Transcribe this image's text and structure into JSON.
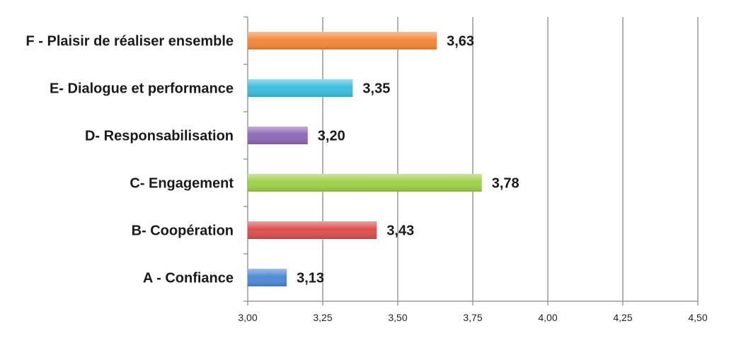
{
  "chart_data": {
    "type": "bar",
    "orientation": "horizontal",
    "categories": [
      "F - Plaisir de réaliser ensemble",
      "E- Dialogue et performance",
      "D- Responsabilisation",
      "C- Engagement",
      "B- Coopération",
      "A - Confiance"
    ],
    "values": [
      3.63,
      3.35,
      3.2,
      3.78,
      3.43,
      3.13
    ],
    "value_labels": [
      "3,63",
      "3,35",
      "3,20",
      "3,78",
      "3,43",
      "3,13"
    ],
    "colors": [
      "#f58a3c",
      "#3ec0e0",
      "#8e6bb8",
      "#9ed14a",
      "#de5050",
      "#4f8ad6"
    ],
    "xlim": [
      3.0,
      4.5
    ],
    "xticks": [
      3.0,
      3.25,
      3.5,
      3.75,
      4.0,
      4.25,
      4.5
    ],
    "xtick_labels": [
      "3,00",
      "3,25",
      "3,50",
      "3,75",
      "4,00",
      "4,25",
      "4,50"
    ],
    "grid": true,
    "legend": "none",
    "title": "",
    "xlabel": "",
    "ylabel": ""
  }
}
